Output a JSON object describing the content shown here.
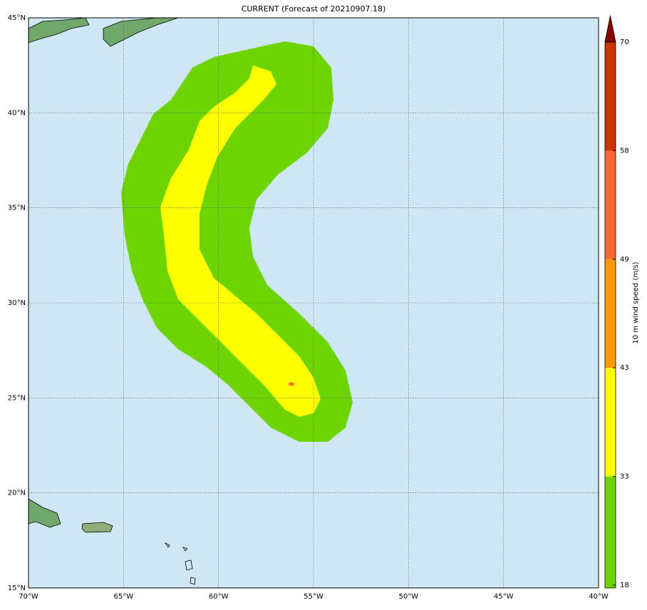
{
  "title": "CURRENT (Forecast of 20210907.18)",
  "map": {
    "lonlim": [
      -70,
      -40
    ],
    "latlim": [
      15,
      45
    ],
    "lonticks": [
      {
        "value": -70,
        "label": "70°W"
      },
      {
        "value": -65,
        "label": "65°W"
      },
      {
        "value": -60,
        "label": "60°W"
      },
      {
        "value": -55,
        "label": "55°W"
      },
      {
        "value": -50,
        "label": "50°W"
      },
      {
        "value": -45,
        "label": "45°W"
      },
      {
        "value": -40,
        "label": "40°W"
      }
    ],
    "latticks": [
      {
        "value": 15,
        "label": "15°N"
      },
      {
        "value": 20,
        "label": "20°N"
      },
      {
        "value": 25,
        "label": "25°N"
      },
      {
        "value": 30,
        "label": "30°N"
      },
      {
        "value": 35,
        "label": "35°N"
      },
      {
        "value": 40,
        "label": "40°N"
      },
      {
        "value": 45,
        "label": "45°N"
      }
    ]
  },
  "colorbar": {
    "label": "10 m wind speed (m/s)",
    "ticks": [
      18,
      33,
      43,
      49,
      58,
      70
    ],
    "colors": [
      "#6dd400",
      "#ffff00",
      "#ff9900",
      "#ff6633",
      "#cc3300",
      "#880000"
    ]
  }
}
